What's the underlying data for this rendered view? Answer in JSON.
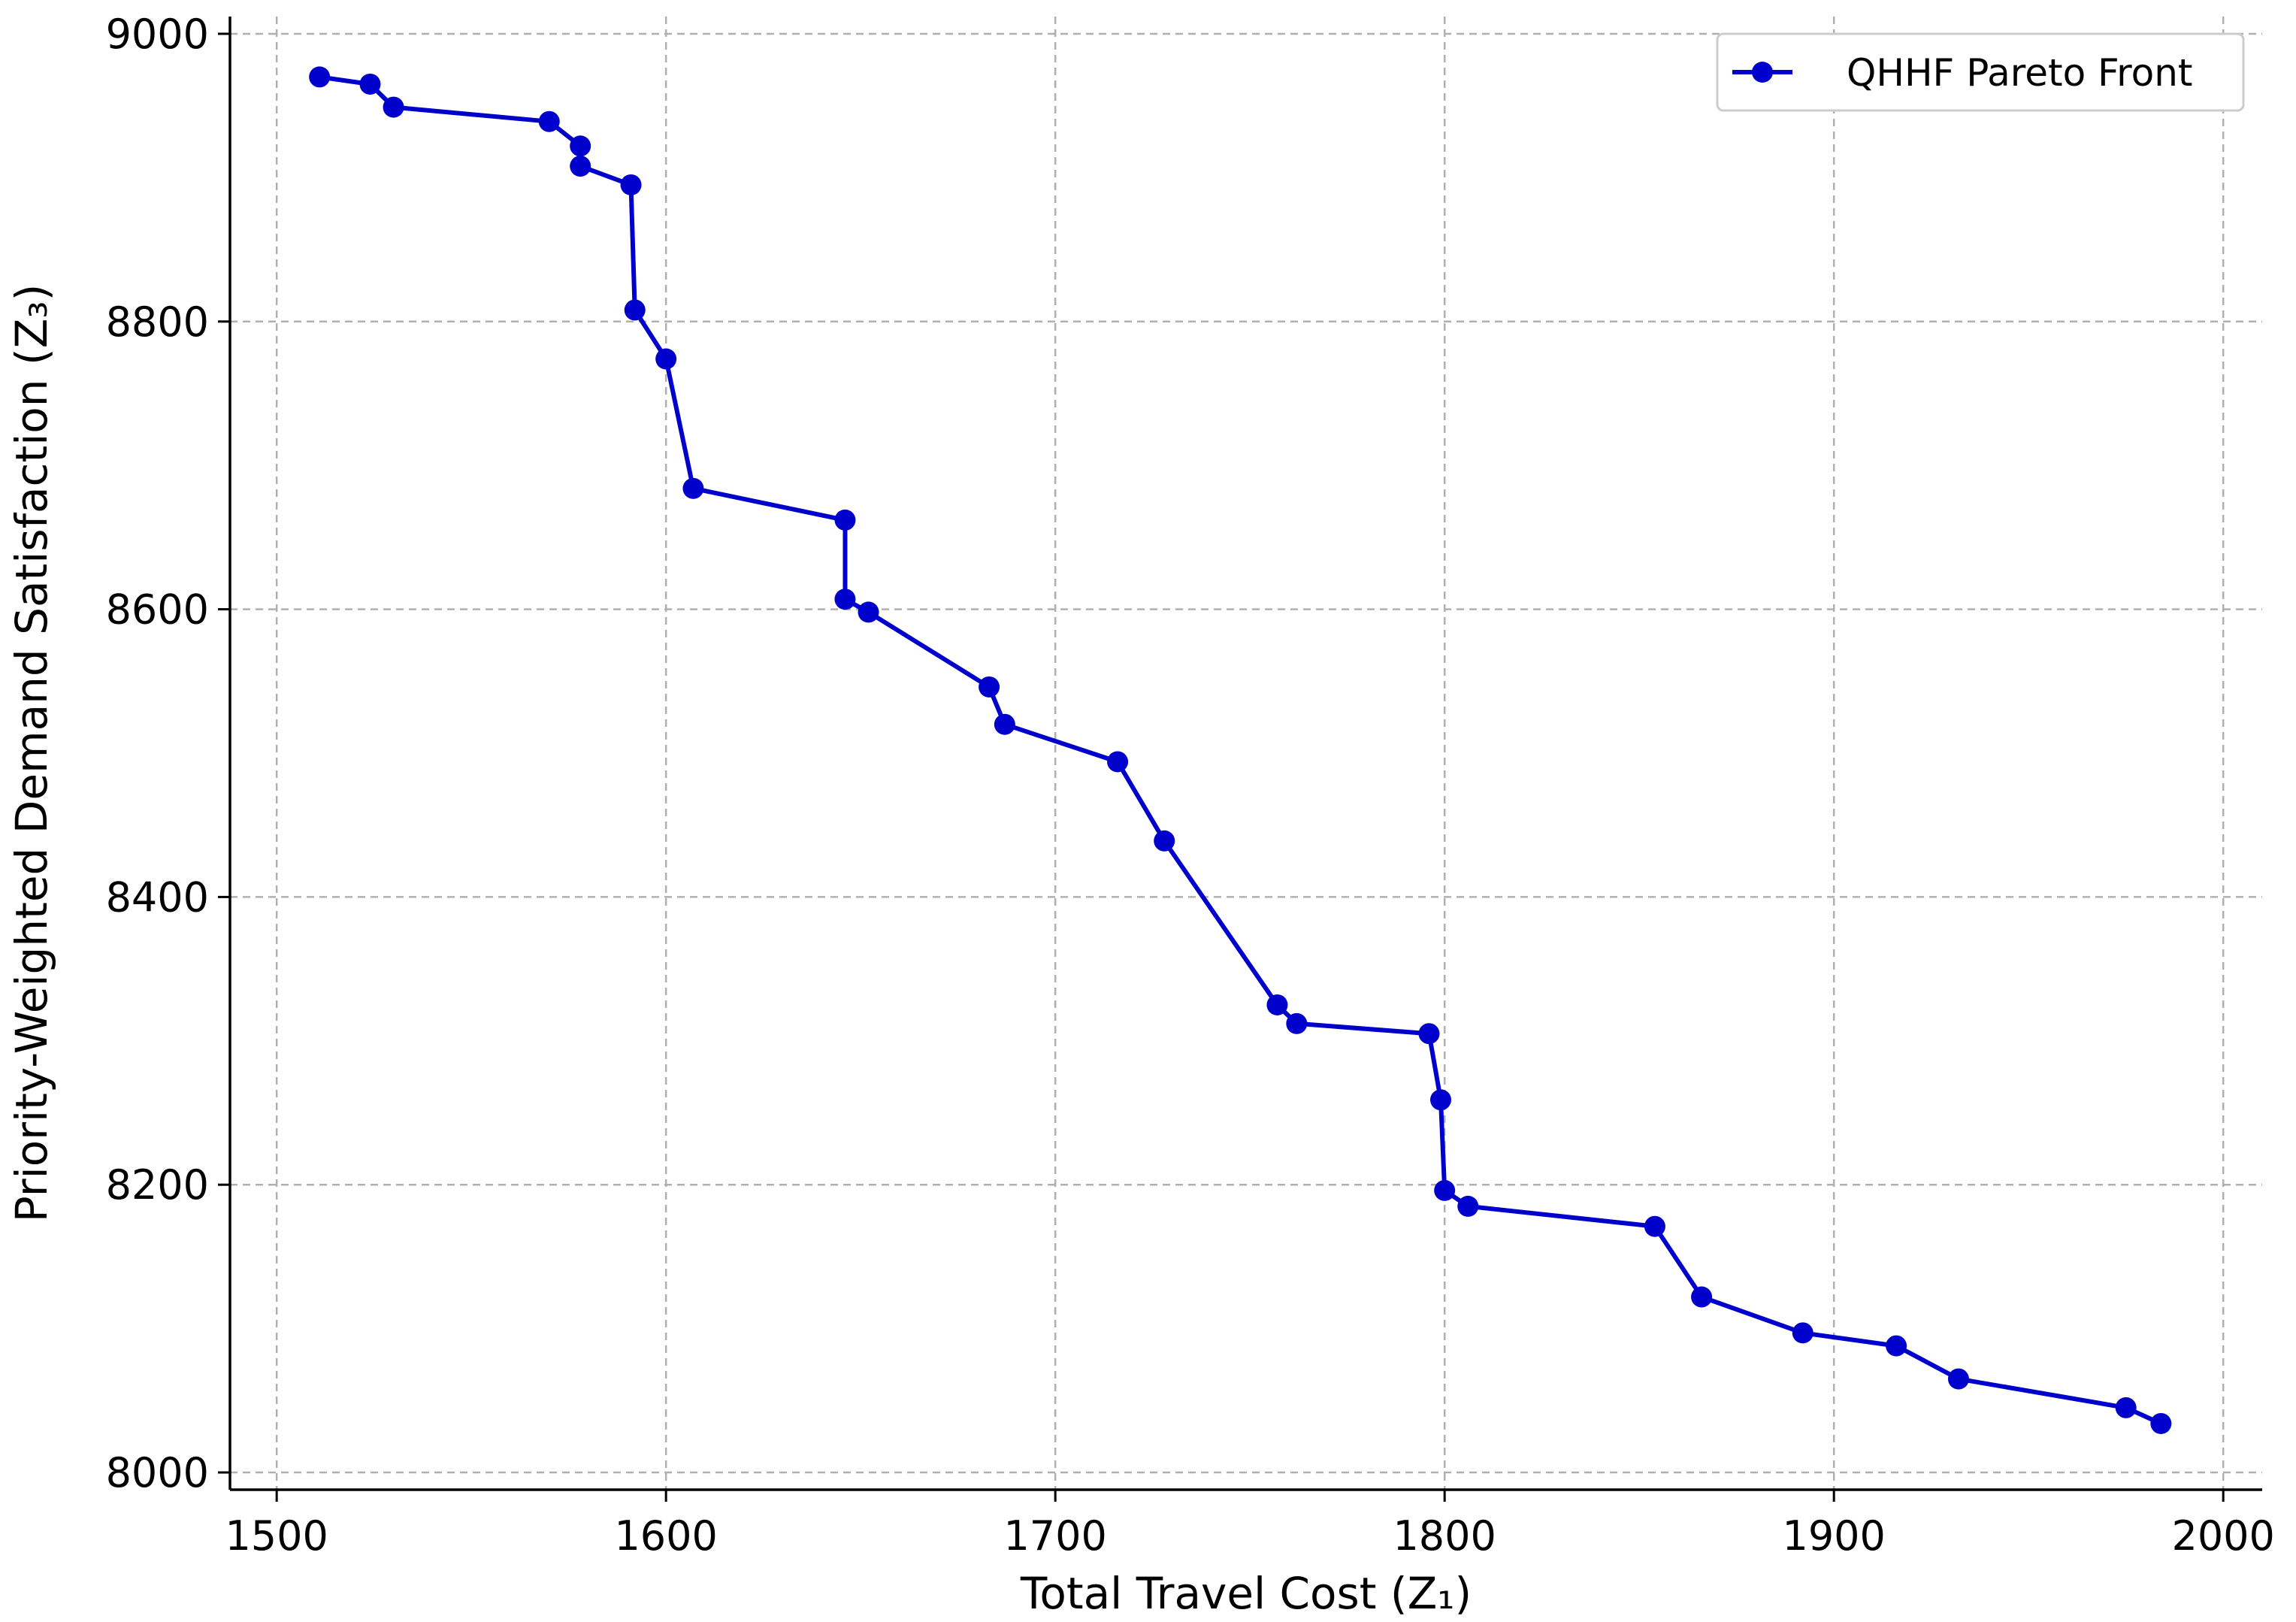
{
  "chart_data": {
    "type": "line",
    "title": "",
    "xlabel": "Total Travel Cost (Z₁)",
    "ylabel": "Priority-Weighted Demand Satisfaction (Z₃)",
    "xlim": [
      1488,
      2010
    ],
    "ylim": [
      7988,
      9012
    ],
    "xticks": [
      1500,
      1600,
      1700,
      1800,
      1900,
      2000
    ],
    "yticks": [
      8000,
      8200,
      8400,
      8600,
      8800,
      9000
    ],
    "grid": true,
    "legend": "top-right",
    "series": [
      {
        "name": "QHHF Pareto Front",
        "color": "#0000cc",
        "marker": "circle",
        "x": [
          1511,
          1524,
          1530,
          1570,
          1578,
          1578,
          1591,
          1592,
          1600,
          1607,
          1646,
          1646,
          1652,
          1683,
          1687,
          1716,
          1728,
          1757,
          1762,
          1796,
          1799,
          1800,
          1806,
          1854,
          1866,
          1892,
          1916,
          1932,
          1975,
          1984
        ],
        "y": [
          8970,
          8965,
          8949,
          8939,
          8922,
          8908,
          8895,
          8808,
          8774,
          8684,
          8662,
          8607,
          8598,
          8546,
          8520,
          8494,
          8439,
          8325,
          8312,
          8305,
          8259,
          8196,
          8185,
          8171,
          8122,
          8097,
          8088,
          8065,
          8045,
          8034
        ]
      }
    ]
  }
}
